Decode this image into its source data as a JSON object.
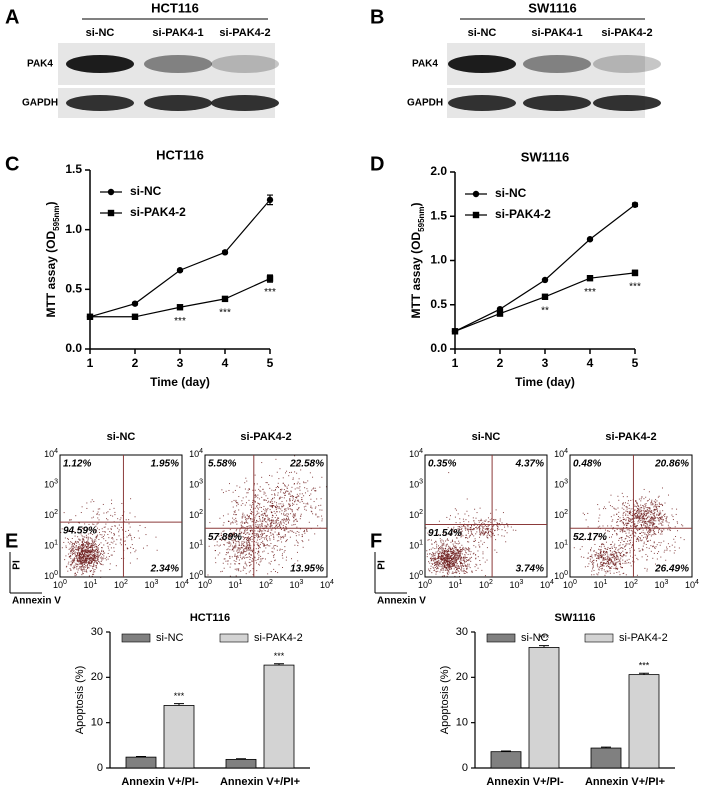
{
  "panel_labels": [
    "A",
    "B",
    "C",
    "D",
    "E",
    "F"
  ],
  "blots": [
    {
      "title": "HCT116",
      "lanes": [
        "si-NC",
        "si-PAK4-1",
        "si-PAK4-2"
      ],
      "rows": [
        "PAK4",
        "GAPDH"
      ]
    },
    {
      "title": "SW1116",
      "lanes": [
        "si-NC",
        "si-PAK4-1",
        "si-PAK4-2"
      ],
      "rows": [
        "PAK4",
        "GAPDH"
      ]
    }
  ],
  "flow": [
    {
      "xlabel": "Annexin V",
      "ylabel": "PI",
      "tick_base": "10",
      "tick_exponents": [
        "0",
        "1",
        "2",
        "3",
        "4"
      ],
      "plots": [
        {
          "title": "si-NC",
          "quadrants": {
            "ul": "1.12%",
            "ur": "1.95%",
            "ll": "94.59%",
            "lr": "2.34%"
          }
        },
        {
          "title": "si-PAK4-2",
          "quadrants": {
            "ul": "5.58%",
            "ur": "22.58%",
            "ll": "57.89%",
            "lr": "13.95%"
          }
        }
      ]
    },
    {
      "xlabel": "Annexin V",
      "ylabel": "PI",
      "tick_base": "10",
      "tick_exponents": [
        "0",
        "1",
        "2",
        "3",
        "4"
      ],
      "plots": [
        {
          "title": "si-NC",
          "quadrants": {
            "ul": "0.35%",
            "ur": "4.37%",
            "ll": "91.54%",
            "lr": "3.74%"
          }
        },
        {
          "title": "si-PAK4-2",
          "quadrants": {
            "ul": "0.48%",
            "ur": "20.86%",
            "ll": "52.17%",
            "lr": "26.49%"
          }
        }
      ]
    }
  ],
  "chart_data": [
    {
      "type": "line",
      "title": "HCT116",
      "xlabel": "Time (day)",
      "ylabel": [
        "MTT assay (OD",
        "595nm",
        ")"
      ],
      "x": [
        1,
        2,
        3,
        4,
        5
      ],
      "xlim": [
        1,
        5
      ],
      "xticks": [
        1,
        2,
        3,
        4,
        5
      ],
      "ylim": [
        0,
        1.5
      ],
      "yticks": [
        {
          "value": 0,
          "label": "0.0"
        },
        {
          "value": 0.5,
          "label": "0.5"
        },
        {
          "value": 1,
          "label": "1.0"
        },
        {
          "value": 1.5,
          "label": "1.5"
        }
      ],
      "series": [
        {
          "name": "si-NC",
          "color": "#000000",
          "marker": "circle",
          "values": [
            0.27,
            0.38,
            0.66,
            0.81,
            1.25
          ],
          "errors": [
            0.01,
            0.01,
            0.01,
            0.01,
            0.04
          ]
        },
        {
          "name": "si-PAK4-2",
          "color": "#000000",
          "marker": "square",
          "values": [
            0.27,
            0.27,
            0.35,
            0.42,
            0.59
          ],
          "errors": [
            0.01,
            0.01,
            0.01,
            0.01,
            0.03
          ],
          "significance": [
            null,
            null,
            "***",
            "***",
            "***"
          ]
        }
      ]
    },
    {
      "type": "line",
      "title": "SW1116",
      "xlabel": "Time (day)",
      "ylabel": [
        "MTT assay (OD",
        "595nm",
        ")"
      ],
      "x": [
        1,
        2,
        3,
        4,
        5
      ],
      "xlim": [
        1,
        5
      ],
      "xticks": [
        1,
        2,
        3,
        4,
        5
      ],
      "ylim": [
        0,
        2
      ],
      "yticks": [
        {
          "value": 0,
          "label": "0.0"
        },
        {
          "value": 0.5,
          "label": "0.5"
        },
        {
          "value": 1,
          "label": "1.0"
        },
        {
          "value": 1.5,
          "label": "1.5"
        },
        {
          "value": 2,
          "label": "2.0"
        }
      ],
      "series": [
        {
          "name": "si-NC",
          "color": "#000000",
          "marker": "circle",
          "values": [
            0.2,
            0.45,
            0.78,
            1.24,
            1.63
          ],
          "errors": [
            0.01,
            0.01,
            0.01,
            0.01,
            0.02
          ]
        },
        {
          "name": "si-PAK4-2",
          "color": "#000000",
          "marker": "square",
          "values": [
            0.2,
            0.4,
            0.59,
            0.8,
            0.86
          ],
          "errors": [
            0.01,
            0.01,
            0.01,
            0.01,
            0.03
          ],
          "significance": [
            null,
            null,
            "**",
            "***",
            "***"
          ]
        }
      ]
    },
    {
      "type": "bar",
      "title": "HCT116",
      "ylabel": "Apoptosis (%)",
      "categories": [
        "Annexin V+/PI-",
        "Annexin V+/PI+"
      ],
      "ylim": [
        0,
        30
      ],
      "yticks": [
        0,
        10,
        20,
        30
      ],
      "series": [
        {
          "name": "si-NC",
          "color": "#808080",
          "values": [
            2.4,
            1.9
          ],
          "errors": [
            0.15,
            0.15
          ]
        },
        {
          "name": "si-PAK4-2",
          "color": "#d3d3d3",
          "values": [
            13.8,
            22.7
          ],
          "errors": [
            0.4,
            0.3
          ],
          "significance": [
            "***",
            "***"
          ]
        }
      ]
    },
    {
      "type": "bar",
      "title": "SW1116",
      "ylabel": "Apoptosis (%)",
      "categories": [
        "Annexin V+/PI-",
        "Annexin V+/PI+"
      ],
      "ylim": [
        0,
        30
      ],
      "yticks": [
        0,
        10,
        20,
        30
      ],
      "series": [
        {
          "name": "si-NC",
          "color": "#808080",
          "values": [
            3.6,
            4.4
          ],
          "errors": [
            0.15,
            0.2
          ],
          "significance": null
        },
        {
          "name": "si-PAK4-2",
          "color": "#d3d3d3",
          "values": [
            26.6,
            20.6
          ],
          "errors": [
            0.4,
            0.3
          ],
          "significance": [
            "***",
            "***"
          ]
        }
      ]
    }
  ]
}
